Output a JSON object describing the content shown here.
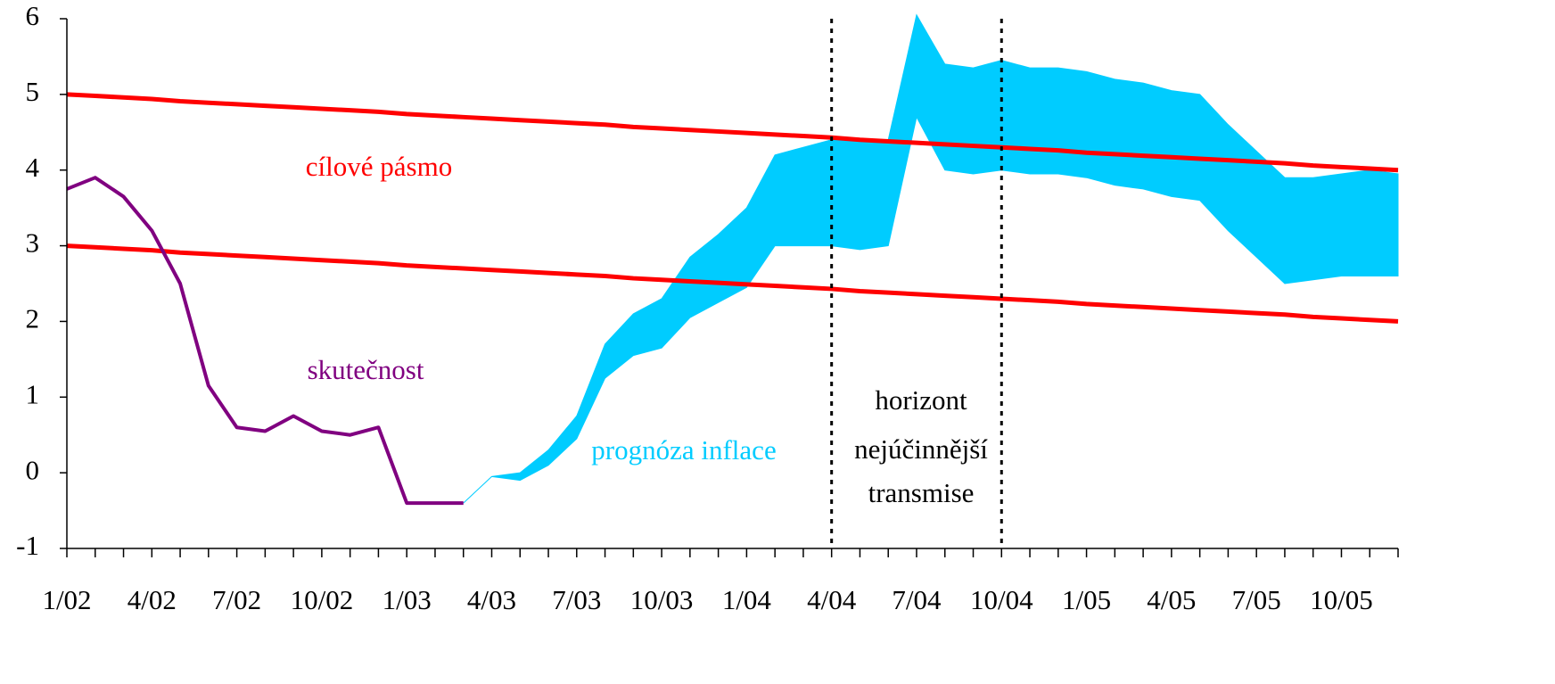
{
  "chart_data": {
    "type": "line",
    "categories": [
      "1/02",
      null,
      null,
      "4/02",
      null,
      null,
      "7/02",
      null,
      null,
      "10/02",
      null,
      null,
      "1/03",
      null,
      null,
      "4/03",
      null,
      null,
      "7/03",
      null,
      null,
      "10/03",
      null,
      null,
      "1/04",
      null,
      null,
      "4/04",
      null,
      null,
      "7/04",
      null,
      null,
      "10/04",
      null,
      null,
      "1/05",
      null,
      null,
      "4/05",
      null,
      null,
      "7/05",
      null,
      null,
      "10/05",
      null,
      null
    ],
    "ylim": [
      -1,
      6
    ],
    "yticks": [
      -1,
      0,
      1,
      2,
      3,
      4,
      5,
      6
    ],
    "series": [
      {
        "color": "#ff0000",
        "values": [
          5.0,
          4.98,
          4.96,
          4.94,
          4.91,
          4.89,
          4.87,
          4.85,
          4.83,
          4.81,
          4.79,
          4.77,
          4.74,
          4.72,
          4.7,
          4.68,
          4.66,
          4.64,
          4.62,
          4.6,
          4.57,
          4.55,
          4.53,
          4.51,
          4.49,
          4.47,
          4.45,
          4.43,
          4.4,
          4.38,
          4.36,
          4.34,
          4.32,
          4.3,
          4.28,
          4.26,
          4.23,
          4.21,
          4.19,
          4.17,
          4.15,
          4.13,
          4.11,
          4.09,
          4.06,
          4.04,
          4.02,
          4.0
        ]
      },
      {
        "color": "#ff0000",
        "values": [
          3.0,
          2.98,
          2.96,
          2.94,
          2.91,
          2.89,
          2.87,
          2.85,
          2.83,
          2.81,
          2.79,
          2.77,
          2.74,
          2.72,
          2.7,
          2.68,
          2.66,
          2.64,
          2.62,
          2.6,
          2.57,
          2.55,
          2.53,
          2.51,
          2.49,
          2.47,
          2.45,
          2.43,
          2.4,
          2.38,
          2.36,
          2.34,
          2.32,
          2.3,
          2.28,
          2.26,
          2.23,
          2.21,
          2.19,
          2.17,
          2.15,
          2.13,
          2.11,
          2.09,
          2.06,
          2.04,
          2.02,
          2.0
        ]
      },
      {
        "color": "#800080",
        "values": [
          3.75,
          3.9,
          3.65,
          3.2,
          2.5,
          1.15,
          0.6,
          0.55,
          0.75,
          0.55,
          0.5,
          0.6,
          -0.4,
          -0.4,
          -0.4,
          null,
          null,
          null,
          null,
          null,
          null,
          null,
          null,
          null,
          null,
          null,
          null,
          null,
          null,
          null,
          null,
          null,
          null,
          null,
          null,
          null,
          null,
          null,
          null,
          null,
          null,
          null,
          null,
          null,
          null,
          null,
          null,
          null
        ]
      }
    ],
    "band": {
      "color": "#00ccff",
      "upper": [
        null,
        null,
        null,
        null,
        null,
        null,
        null,
        null,
        null,
        null,
        null,
        null,
        null,
        null,
        -0.4,
        -0.05,
        0.0,
        0.3,
        0.75,
        1.7,
        2.1,
        2.3,
        2.85,
        3.15,
        3.5,
        4.2,
        4.3,
        4.4,
        4.4,
        4.4,
        6.05,
        5.4,
        5.35,
        5.45,
        5.35,
        5.35,
        5.3,
        5.2,
        5.15,
        5.05,
        5.0,
        4.6,
        4.25,
        3.9,
        3.9,
        3.95,
        4.0,
        3.95
      ],
      "lower": [
        null,
        null,
        null,
        null,
        null,
        null,
        null,
        null,
        null,
        null,
        null,
        null,
        null,
        null,
        -0.4,
        -0.05,
        -0.1,
        0.1,
        0.45,
        1.25,
        1.55,
        1.65,
        2.05,
        2.25,
        2.45,
        3.0,
        3.0,
        3.0,
        2.95,
        3.0,
        4.7,
        4.0,
        3.95,
        4.0,
        3.95,
        3.95,
        3.9,
        3.8,
        3.75,
        3.65,
        3.6,
        3.2,
        2.85,
        2.5,
        2.55,
        2.6,
        2.6,
        2.6
      ]
    },
    "markers": [
      27,
      33
    ],
    "annotations": {
      "target": "cílové pásmo",
      "actual": "skutečnost",
      "forecast": "prognóza inflace",
      "horizon": [
        "horizont",
        "nejúčinnější",
        "transmise"
      ]
    }
  }
}
